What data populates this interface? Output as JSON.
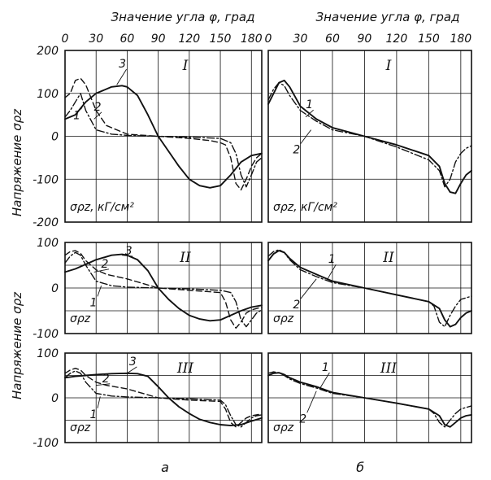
{
  "figure": {
    "top_axis_title": "Значение угла φ, град",
    "y_axis_title": "Напряжение σρz",
    "sub_labels": [
      "а",
      "б"
    ]
  },
  "chart_data": [
    {
      "id": "a-I",
      "type": "line",
      "column": "а",
      "row": "I",
      "xlim": [
        0,
        190
      ],
      "ylim": [
        -200,
        200
      ],
      "yticks": [
        "200",
        "100",
        "0",
        "-100",
        "-200"
      ],
      "unit_label": "σρz, кГ/см²",
      "series": [
        {
          "name": "1",
          "style": "dashdot",
          "x": [
            0,
            5,
            10,
            15,
            20,
            30,
            45,
            60,
            90,
            120,
            150,
            160,
            165,
            170,
            175,
            180,
            185,
            190
          ],
          "y": [
            45,
            60,
            80,
            100,
            60,
            15,
            5,
            2,
            0,
            -2,
            -5,
            -15,
            -40,
            -90,
            -118,
            -90,
            -60,
            -50
          ]
        },
        {
          "name": "2",
          "style": "dashed",
          "x": [
            0,
            5,
            10,
            15,
            20,
            30,
            40,
            60,
            90,
            120,
            140,
            150,
            155,
            160,
            165,
            170,
            175,
            180,
            185,
            190
          ],
          "y": [
            90,
            100,
            130,
            135,
            120,
            60,
            25,
            5,
            0,
            -5,
            -10,
            -15,
            -20,
            -50,
            -110,
            -125,
            -100,
            -70,
            -50,
            -40
          ]
        },
        {
          "name": "3",
          "style": "solid",
          "x": [
            0,
            10,
            20,
            30,
            45,
            55,
            60,
            70,
            80,
            90,
            100,
            110,
            120,
            130,
            140,
            150,
            160,
            170,
            180,
            190
          ],
          "y": [
            40,
            50,
            80,
            100,
            115,
            118,
            115,
            95,
            50,
            0,
            -35,
            -70,
            -100,
            -115,
            -120,
            -115,
            -90,
            -60,
            -45,
            -40
          ]
        }
      ],
      "labels": [
        "1",
        "2",
        "3"
      ]
    },
    {
      "id": "b-I",
      "type": "line",
      "column": "б",
      "row": "I",
      "xlim": [
        0,
        190
      ],
      "ylim": [
        -200,
        200
      ],
      "unit_label": "σρz, кГ/см²",
      "series": [
        {
          "name": "1",
          "style": "solid",
          "x": [
            0,
            5,
            10,
            15,
            20,
            30,
            45,
            60,
            90,
            120,
            150,
            160,
            165,
            170,
            175,
            180,
            185,
            190
          ],
          "y": [
            75,
            100,
            125,
            130,
            115,
            70,
            40,
            20,
            0,
            -20,
            -45,
            -70,
            -110,
            -130,
            -133,
            -110,
            -90,
            -80
          ]
        },
        {
          "name": "2",
          "style": "dashdot",
          "x": [
            0,
            5,
            10,
            15,
            20,
            30,
            45,
            60,
            90,
            120,
            150,
            160,
            165,
            170,
            175,
            180,
            185,
            190
          ],
          "y": [
            85,
            110,
            125,
            118,
            95,
            60,
            35,
            15,
            0,
            -25,
            -55,
            -80,
            -118,
            -100,
            -60,
            -40,
            -28,
            -22
          ]
        }
      ],
      "labels": [
        "1",
        "2"
      ]
    },
    {
      "id": "a-II",
      "type": "line",
      "column": "а",
      "row": "II",
      "xlim": [
        0,
        190
      ],
      "ylim": [
        -100,
        100
      ],
      "yticks": [
        "100",
        "0",
        "-100"
      ],
      "unit_label": "σρz",
      "series": [
        {
          "name": "1",
          "style": "dashdot",
          "x": [
            0,
            5,
            10,
            15,
            20,
            30,
            45,
            60,
            90,
            120,
            150,
            160,
            165,
            170,
            175,
            180,
            185,
            190
          ],
          "y": [
            55,
            70,
            78,
            72,
            50,
            15,
            5,
            2,
            0,
            -2,
            -5,
            -10,
            -30,
            -70,
            -85,
            -70,
            -55,
            -48
          ]
        },
        {
          "name": "2",
          "style": "dashed",
          "x": [
            0,
            5,
            10,
            15,
            20,
            30,
            40,
            60,
            90,
            120,
            150,
            155,
            160,
            165,
            170,
            175,
            180,
            190
          ],
          "y": [
            72,
            80,
            82,
            76,
            60,
            40,
            30,
            20,
            0,
            -5,
            -10,
            -30,
            -70,
            -88,
            -75,
            -55,
            -48,
            -42
          ]
        },
        {
          "name": "3",
          "style": "solid",
          "x": [
            0,
            10,
            20,
            30,
            45,
            55,
            60,
            70,
            80,
            90,
            100,
            110,
            120,
            130,
            140,
            150,
            160,
            170,
            180,
            190
          ],
          "y": [
            35,
            42,
            52,
            62,
            72,
            74,
            72,
            62,
            38,
            0,
            -25,
            -45,
            -60,
            -68,
            -72,
            -70,
            -60,
            -50,
            -42,
            -38
          ]
        }
      ],
      "labels": [
        "1",
        "2",
        "3"
      ]
    },
    {
      "id": "b-II",
      "type": "line",
      "column": "б",
      "row": "II",
      "xlim": [
        0,
        190
      ],
      "ylim": [
        -100,
        100
      ],
      "unit_label": "σρz",
      "series": [
        {
          "name": "1",
          "style": "solid",
          "x": [
            0,
            5,
            10,
            15,
            20,
            30,
            45,
            60,
            90,
            120,
            150,
            160,
            165,
            170,
            175,
            180,
            185,
            190
          ],
          "y": [
            60,
            75,
            82,
            78,
            65,
            45,
            30,
            15,
            0,
            -15,
            -30,
            -45,
            -70,
            -85,
            -80,
            -65,
            -55,
            -50
          ]
        },
        {
          "name": "2",
          "style": "dashdot",
          "x": [
            0,
            5,
            10,
            15,
            20,
            30,
            45,
            60,
            90,
            120,
            150,
            155,
            160,
            165,
            170,
            175,
            180,
            190
          ],
          "y": [
            70,
            80,
            84,
            78,
            62,
            40,
            25,
            12,
            0,
            -15,
            -30,
            -40,
            -75,
            -85,
            -60,
            -40,
            -25,
            -18
          ]
        }
      ],
      "labels": [
        "1",
        "2"
      ]
    },
    {
      "id": "a-III",
      "type": "line",
      "column": "а",
      "row": "III",
      "xlim": [
        0,
        190
      ],
      "ylim": [
        -100,
        100
      ],
      "yticks": [
        "100",
        "0",
        "-100"
      ],
      "unit_label": "σρz",
      "series": [
        {
          "name": "1",
          "style": "dashdot",
          "x": [
            0,
            5,
            10,
            15,
            20,
            30,
            45,
            60,
            90,
            120,
            150,
            155,
            160,
            165,
            170,
            175,
            180,
            185,
            190
          ],
          "y": [
            45,
            55,
            60,
            55,
            35,
            10,
            4,
            2,
            0,
            -2,
            -5,
            -15,
            -40,
            -60,
            -65,
            -55,
            -45,
            -40,
            -38
          ]
        },
        {
          "name": "2",
          "style": "dashed",
          "x": [
            0,
            5,
            10,
            15,
            20,
            30,
            40,
            60,
            90,
            120,
            150,
            155,
            160,
            165,
            170,
            175,
            180,
            190
          ],
          "y": [
            55,
            62,
            66,
            62,
            50,
            35,
            28,
            20,
            0,
            -5,
            -8,
            -25,
            -55,
            -65,
            -55,
            -45,
            -40,
            -36
          ]
        },
        {
          "name": "3",
          "style": "solid",
          "x": [
            0,
            10,
            20,
            30,
            45,
            60,
            70,
            80,
            90,
            100,
            110,
            120,
            130,
            140,
            150,
            160,
            170,
            180,
            190
          ],
          "y": [
            45,
            48,
            50,
            52,
            54,
            55,
            54,
            48,
            25,
            0,
            -20,
            -35,
            -48,
            -55,
            -60,
            -62,
            -60,
            -52,
            -45
          ]
        }
      ],
      "labels": [
        "1",
        "2",
        "3"
      ]
    },
    {
      "id": "b-III",
      "type": "line",
      "column": "б",
      "row": "III",
      "xlim": [
        0,
        190
      ],
      "ylim": [
        -100,
        100
      ],
      "unit_label": "σρz",
      "series": [
        {
          "name": "1",
          "style": "solid",
          "x": [
            0,
            5,
            10,
            15,
            20,
            30,
            45,
            60,
            90,
            120,
            150,
            160,
            165,
            170,
            175,
            180,
            185,
            190
          ],
          "y": [
            50,
            55,
            56,
            52,
            45,
            35,
            25,
            12,
            0,
            -12,
            -25,
            -40,
            -60,
            -65,
            -55,
            -45,
            -40,
            -38
          ]
        },
        {
          "name": "2",
          "style": "dashdot",
          "x": [
            0,
            5,
            10,
            15,
            20,
            30,
            45,
            60,
            90,
            120,
            150,
            155,
            160,
            165,
            170,
            175,
            180,
            190
          ],
          "y": [
            55,
            58,
            56,
            50,
            42,
            32,
            22,
            10,
            0,
            -12,
            -25,
            -35,
            -55,
            -65,
            -50,
            -35,
            -25,
            -18
          ]
        }
      ],
      "labels": [
        "1",
        "2"
      ]
    }
  ],
  "x_axis": {
    "ticks": [
      "0",
      "30",
      "60",
      "90",
      "120",
      "150",
      "180"
    ],
    "tick_values": [
      0,
      30,
      60,
      90,
      120,
      150,
      180
    ]
  }
}
